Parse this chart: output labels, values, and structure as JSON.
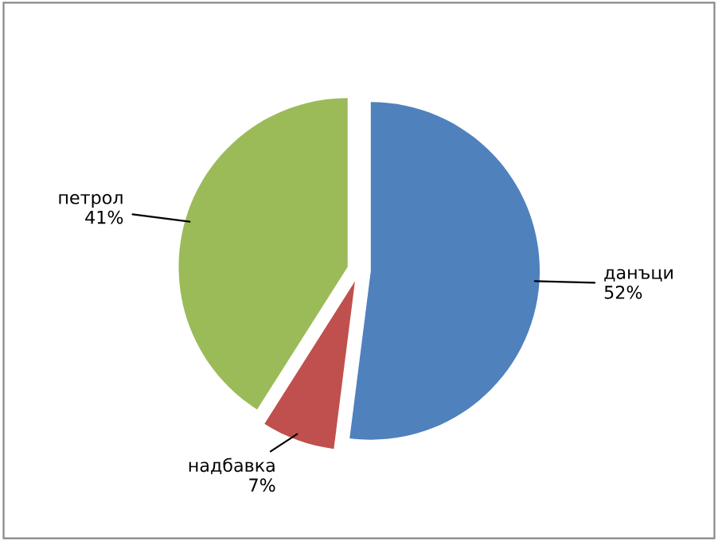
{
  "chart_data": {
    "type": "pie",
    "categories": [
      "данъци",
      "надбавка",
      "петрол"
    ],
    "values": [
      52,
      7,
      41
    ],
    "value_labels": [
      "52%",
      "7%",
      "41%"
    ],
    "colors": [
      "#4f81bd",
      "#c0504d",
      "#9bbb59"
    ],
    "legend": false
  }
}
